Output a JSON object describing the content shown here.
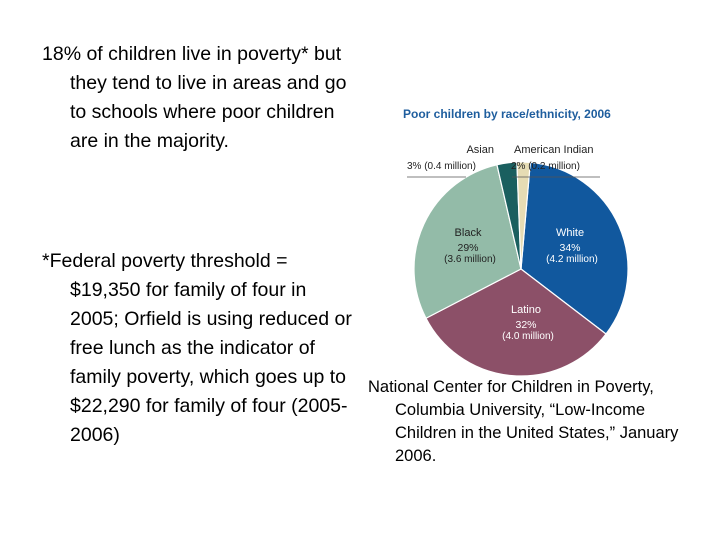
{
  "left_text": {
    "paragraph1": "18% of children live in poverty* but they tend to live in areas and go to schools where poor children are in the majority.",
    "paragraph2": "*Federal poverty threshold = $19,350 for family of four in 2005; Orfield is using reduced or free lunch as the indicator of family poverty, which goes up to $22,290 for family of four (2005-2006)"
  },
  "source_citation": "National Center for Children in Poverty, Columbia University, “Low-Income Children in the United States,” January 2006.",
  "chart_data": {
    "type": "pie",
    "title": "Poor children by race/ethnicity, 2006",
    "slices": [
      {
        "label": "White",
        "percent_label": "34%",
        "count_label": "(4.2 million)",
        "value": 34,
        "color": "#11589e",
        "text_color": "#ffffff"
      },
      {
        "label": "Latino",
        "percent_label": "32%",
        "count_label": "(4.0 million)",
        "value": 32,
        "color": "#8c5068",
        "text_color": "#ffffff"
      },
      {
        "label": "Black",
        "percent_label": "29%",
        "count_label": "(3.6 million)",
        "value": 29,
        "color": "#93bba8",
        "text_color": "#222222"
      },
      {
        "label": "Asian",
        "percent_label": "3%",
        "count_label": "(0.4 million)",
        "value": 3,
        "color": "#1a5f5f",
        "text_color": "#222222"
      },
      {
        "label": "American Indian",
        "percent_label": "2%",
        "count_label": "(0.2 million)",
        "value": 2,
        "color": "#e6dcb4",
        "text_color": "#222222"
      }
    ]
  }
}
